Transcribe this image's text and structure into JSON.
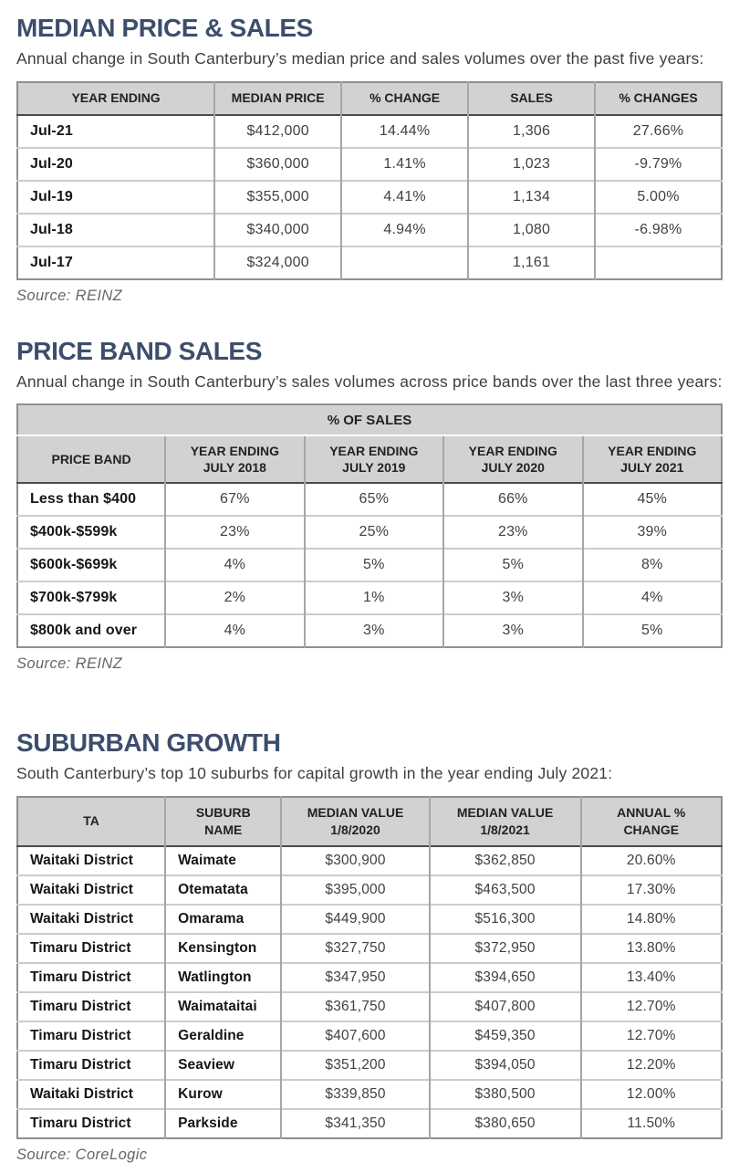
{
  "page": {
    "accent_color": "#3d4e6c",
    "table_header_bg": "#d2d2d2"
  },
  "sections": [
    {
      "title": "MEDIAN PRICE & SALES",
      "subtitle": "Annual change in South Canterbury’s median price and sales volumes over the past five years:",
      "source": "Source: REINZ",
      "table": {
        "columns": [
          "YEAR ENDING",
          "MEDIAN PRICE",
          "% CHANGE",
          "SALES",
          "% CHANGES"
        ],
        "rows": [
          [
            "Jul-21",
            "$412,000",
            "14.44%",
            "1,306",
            "27.66%"
          ],
          [
            "Jul-20",
            "$360,000",
            "1.41%",
            "1,023",
            "-9.79%"
          ],
          [
            "Jul-19",
            "$355,000",
            "4.41%",
            "1,134",
            "5.00%"
          ],
          [
            "Jul-18",
            "$340,000",
            "4.94%",
            "1,080",
            "-6.98%"
          ],
          [
            "Jul-17",
            "$324,000",
            "",
            "1,161",
            ""
          ]
        ]
      }
    },
    {
      "title": "PRICE BAND SALES",
      "subtitle": "Annual change in South Canterbury’s sales volumes across price bands over the last three years:",
      "source": "Source: REINZ",
      "table": {
        "span_header": "% OF SALES",
        "columns": [
          "PRICE BAND",
          "YEAR ENDING\nJULY 2018",
          "YEAR ENDING\nJULY 2019",
          "YEAR ENDING\nJULY 2020",
          "YEAR ENDING\nJULY 2021"
        ],
        "rows": [
          [
            "Less than $400",
            "67%",
            "65%",
            "66%",
            "45%"
          ],
          [
            "$400k-$599k",
            "23%",
            "25%",
            "23%",
            "39%"
          ],
          [
            "$600k-$699k",
            "4%",
            "5%",
            "5%",
            "8%"
          ],
          [
            "$700k-$799k",
            "2%",
            "1%",
            "3%",
            "4%"
          ],
          [
            "$800k and over",
            "4%",
            "3%",
            "3%",
            "5%"
          ]
        ]
      }
    },
    {
      "title": "SUBURBAN GROWTH",
      "subtitle": "South Canterbury’s top 10 suburbs for capital growth in the year ending July 2021:",
      "source": "Source: CoreLogic",
      "table": {
        "columns": [
          "TA",
          "SUBURB\nNAME",
          "MEDIAN VALUE\n1/8/2020",
          "MEDIAN VALUE\n1/8/2021",
          "ANNUAL %\nCHANGE"
        ],
        "rows": [
          [
            "Waitaki District",
            "Waimate",
            "$300,900",
            "$362,850",
            "20.60%"
          ],
          [
            "Waitaki District",
            "Otematata",
            "$395,000",
            "$463,500",
            "17.30%"
          ],
          [
            "Waitaki District",
            "Omarama",
            "$449,900",
            "$516,300",
            "14.80%"
          ],
          [
            "Timaru District",
            "Kensington",
            "$327,750",
            "$372,950",
            "13.80%"
          ],
          [
            "Timaru District",
            "Watlington",
            "$347,950",
            "$394,650",
            "13.40%"
          ],
          [
            "Timaru District",
            "Waimataitai",
            "$361,750",
            "$407,800",
            "12.70%"
          ],
          [
            "Timaru District",
            "Geraldine",
            "$407,600",
            "$459,350",
            "12.70%"
          ],
          [
            "Timaru District",
            "Seaview",
            "$351,200",
            "$394,050",
            "12.20%"
          ],
          [
            "Waitaki District",
            "Kurow",
            "$339,850",
            "$380,500",
            "12.00%"
          ],
          [
            "Timaru District",
            "Parkside",
            "$341,350",
            "$380,650",
            "11.50%"
          ]
        ]
      }
    }
  ]
}
